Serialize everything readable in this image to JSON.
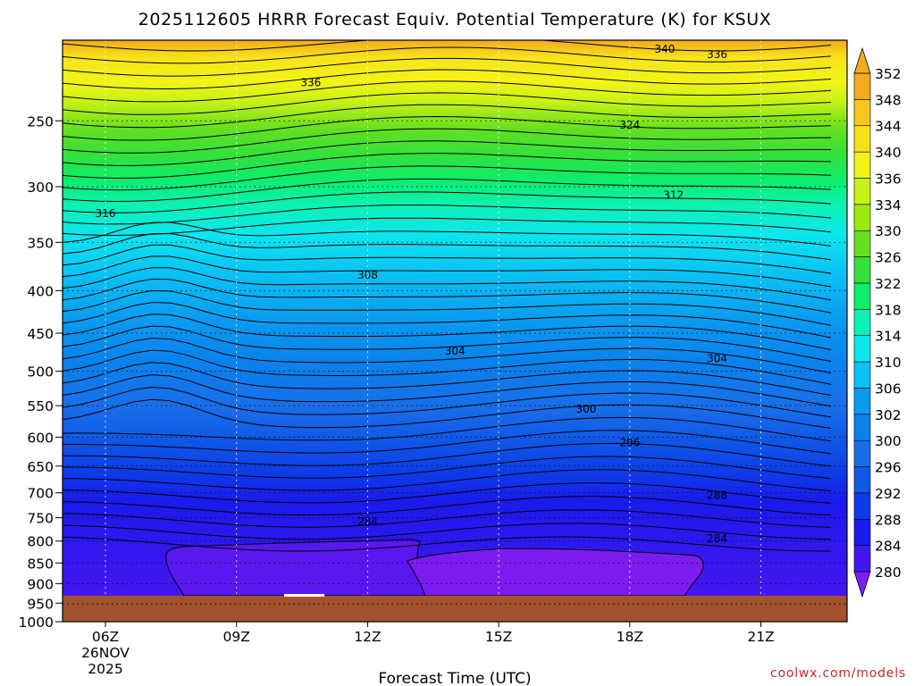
{
  "chart_data": {
    "type": "heatmap",
    "title": "2025112605 HRRR Forecast Equiv. Potential Temperature (K) for KSUX",
    "xlabel": "Forecast Time (UTC)",
    "ylabel": "",
    "x_ticks": [
      "06Z",
      "09Z",
      "12Z",
      "15Z",
      "18Z",
      "21Z"
    ],
    "x_date_label": [
      "26NOV",
      "2025"
    ],
    "y_ticks": [
      250,
      300,
      350,
      400,
      450,
      500,
      550,
      600,
      650,
      700,
      750,
      800,
      850,
      900,
      950,
      1000
    ],
    "y_scale": "log-pressure (hPa, inverted)",
    "grid": "dotted",
    "colorbar": {
      "ticks": [
        280,
        284,
        288,
        292,
        296,
        300,
        302,
        306,
        310,
        314,
        318,
        322,
        326,
        330,
        334,
        336,
        340,
        344,
        348,
        352
      ],
      "colors": [
        "#7d1cf0",
        "#4616f0",
        "#1a1aec",
        "#0e3be8",
        "#1058e6",
        "#1a6ee8",
        "#0a82ec",
        "#0a9cf0",
        "#0ac2f4",
        "#0ce6ee",
        "#0cf2b6",
        "#0ced6a",
        "#34e03a",
        "#64e020",
        "#9aec0c",
        "#c8f214",
        "#f2f416",
        "#f6e21a",
        "#f6c61a",
        "#f4aa1c"
      ],
      "extend": "both"
    },
    "contour_labels": [
      {
        "text": "340",
        "t": 18.8,
        "p": 205
      },
      {
        "text": "336",
        "t": 20.0,
        "p": 208
      },
      {
        "text": "336",
        "t": 10.7,
        "p": 225
      },
      {
        "text": "324",
        "t": 18.0,
        "p": 253
      },
      {
        "text": "312",
        "t": 19.0,
        "p": 307
      },
      {
        "text": "316",
        "t": 6.0,
        "p": 323
      },
      {
        "text": "308",
        "t": 12.0,
        "p": 383
      },
      {
        "text": "304",
        "t": 14.0,
        "p": 473
      },
      {
        "text": "304",
        "t": 20.0,
        "p": 483
      },
      {
        "text": "300",
        "t": 17.0,
        "p": 555
      },
      {
        "text": "296",
        "t": 18.0,
        "p": 609
      },
      {
        "text": "288",
        "t": 20.0,
        "p": 705
      },
      {
        "text": "284",
        "t": 12.0,
        "p": 758
      },
      {
        "text": "284",
        "t": 20.0,
        "p": 795
      }
    ],
    "watermark": "coolwx.com/models"
  }
}
